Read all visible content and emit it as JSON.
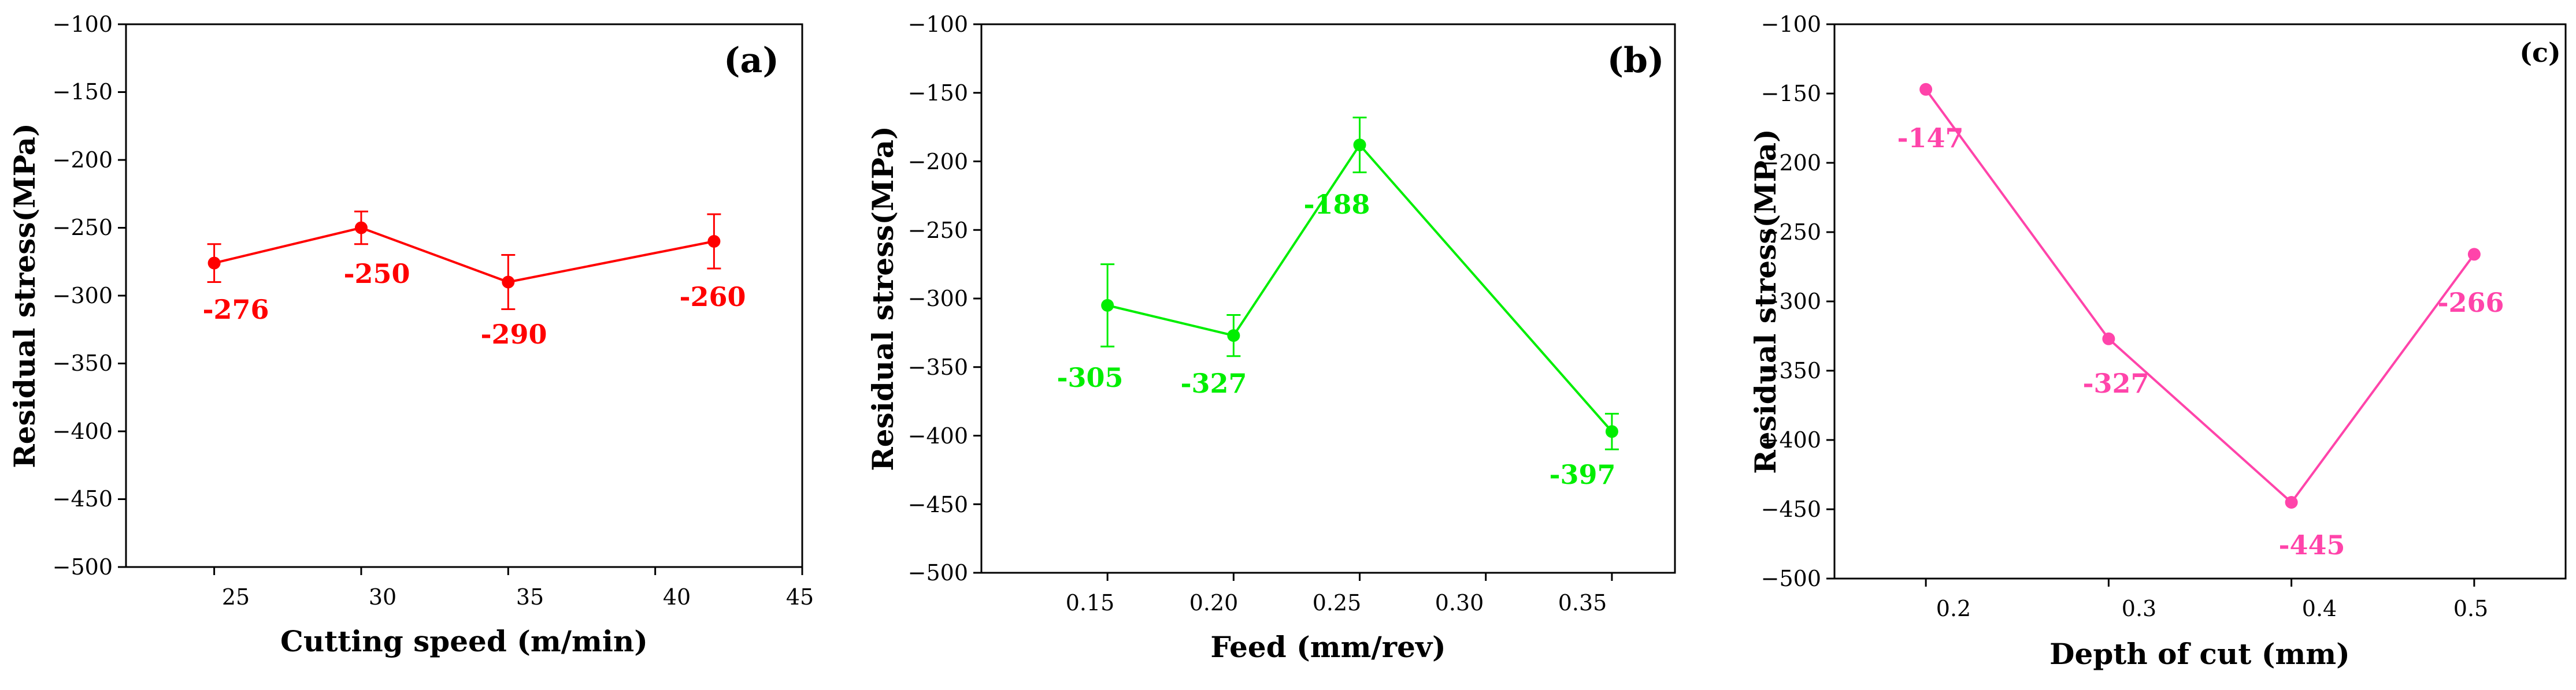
{
  "figure": {
    "panels": [
      {
        "panel_label": "(a)",
        "xlabel": "Cutting speed (m/min)",
        "ylabel": "Residual stress(MPa)",
        "x_ticks": [
          "25",
          "30",
          "35",
          "40",
          "45"
        ],
        "y_ticks": [
          "−100",
          "−150",
          "−200",
          "−250",
          "−300",
          "−350",
          "−400",
          "−450",
          "−500"
        ],
        "color": "#ff0000",
        "point_labels": [
          "-276",
          "-250",
          "-290",
          "-260"
        ]
      },
      {
        "panel_label": "(b)",
        "xlabel": "Feed (mm/rev)",
        "ylabel": "Residual stress(MPa)",
        "x_ticks": [
          "0.15",
          "0.20",
          "0.25",
          "0.30",
          "0.35"
        ],
        "y_ticks": [
          "−100",
          "−150",
          "−200",
          "−250",
          "−300",
          "−350",
          "−400",
          "−450",
          "−500"
        ],
        "color": "#00ee00",
        "point_labels": [
          "-305",
          "-327",
          "-188",
          "-397"
        ]
      },
      {
        "panel_label": "(c)",
        "xlabel": "Depth of cut (mm)",
        "ylabel": "Residual stress(MPa)",
        "x_ticks": [
          "0.2",
          "0.3",
          "0.4",
          "0.5"
        ],
        "y_ticks": [
          "−100",
          "−150",
          "−200",
          "−250",
          "−300",
          "−350",
          "−400",
          "−450",
          "−500"
        ],
        "color": "#ff44aa",
        "point_labels": [
          "-147",
          "-327",
          "-445",
          "-266"
        ]
      }
    ]
  },
  "chart_data": [
    {
      "type": "line",
      "xlabel": "Cutting speed (m/min)",
      "ylabel": "Residual stress(MPa)",
      "x": [
        25,
        30,
        35,
        42
      ],
      "values": [
        -276,
        -250,
        -290,
        -260
      ],
      "error": [
        14,
        12,
        20,
        20
      ],
      "xlim": [
        22,
        45
      ],
      "ylim": [
        -500,
        -100
      ],
      "x_tick_values": [
        25,
        30,
        35,
        40,
        45
      ],
      "y_tick_values": [
        -100,
        -150,
        -200,
        -250,
        -300,
        -350,
        -400,
        -450,
        -500
      ],
      "grid": false,
      "marker": "circle",
      "color": "#ff0000"
    },
    {
      "type": "line",
      "xlabel": "Feed (mm/rev)",
      "ylabel": "Residual stress(MPa)",
      "x": [
        0.15,
        0.2,
        0.25,
        0.35
      ],
      "values": [
        -305,
        -327,
        -188,
        -397
      ],
      "error": [
        30,
        15,
        20,
        13
      ],
      "xlim": [
        0.1,
        0.375
      ],
      "ylim": [
        -500,
        -100
      ],
      "x_tick_values": [
        0.15,
        0.2,
        0.25,
        0.3,
        0.35
      ],
      "y_tick_values": [
        -100,
        -150,
        -200,
        -250,
        -300,
        -350,
        -400,
        -450,
        -500
      ],
      "grid": false,
      "marker": "circle",
      "color": "#00ee00"
    },
    {
      "type": "line",
      "xlabel": "Depth of cut (mm)",
      "ylabel": "Residual stress(MPa)",
      "x": [
        0.2,
        0.3,
        0.4,
        0.5
      ],
      "values": [
        -147,
        -327,
        -445,
        -266
      ],
      "error": [],
      "xlim": [
        0.15,
        0.55
      ],
      "ylim": [
        -500,
        -100
      ],
      "x_tick_values": [
        0.2,
        0.3,
        0.4,
        0.5
      ],
      "y_tick_values": [
        -100,
        -150,
        -200,
        -250,
        -300,
        -350,
        -400,
        -450,
        -500
      ],
      "grid": false,
      "marker": "circle",
      "color": "#ff44aa"
    }
  ]
}
